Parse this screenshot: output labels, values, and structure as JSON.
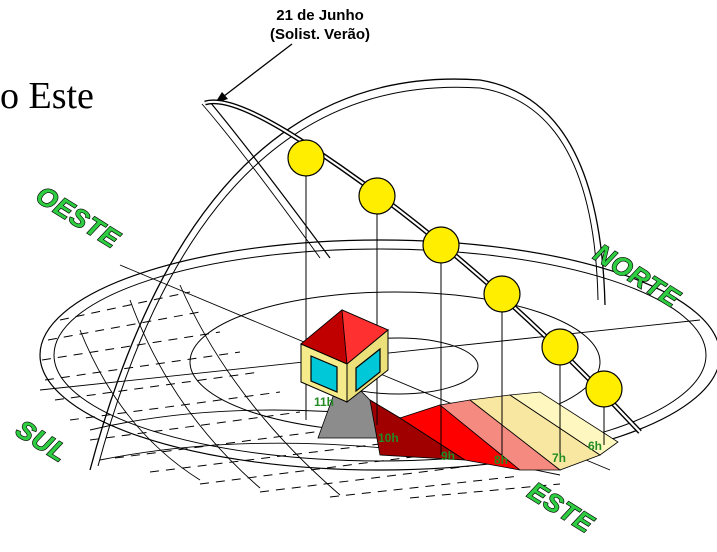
{
  "title_fragment": "o Este",
  "callout": {
    "line1": "21 de Junho",
    "line2": "(Solist. Verão)"
  },
  "directions": {
    "oeste": "OESTE",
    "norte": "NORTE",
    "sul": "SUL",
    "este": "ESTE"
  },
  "hours": [
    "11h",
    "10h",
    "9h",
    "8h",
    "7h",
    "6h"
  ],
  "colors": {
    "sun": "#ffee00",
    "direction_text": "#2ecc40",
    "cube_top": "#e00000",
    "cube_frame": "#f5eb8a",
    "cube_window": "#00c8d8",
    "shadow_11h": "#8c8c8c",
    "shadow_10h": "#a00000",
    "shadow_9h": "#ff0000",
    "shadow_8h": "#f48a80",
    "shadow_7h": "#f7e7a0",
    "shadow_6h": "#fff7c0"
  }
}
